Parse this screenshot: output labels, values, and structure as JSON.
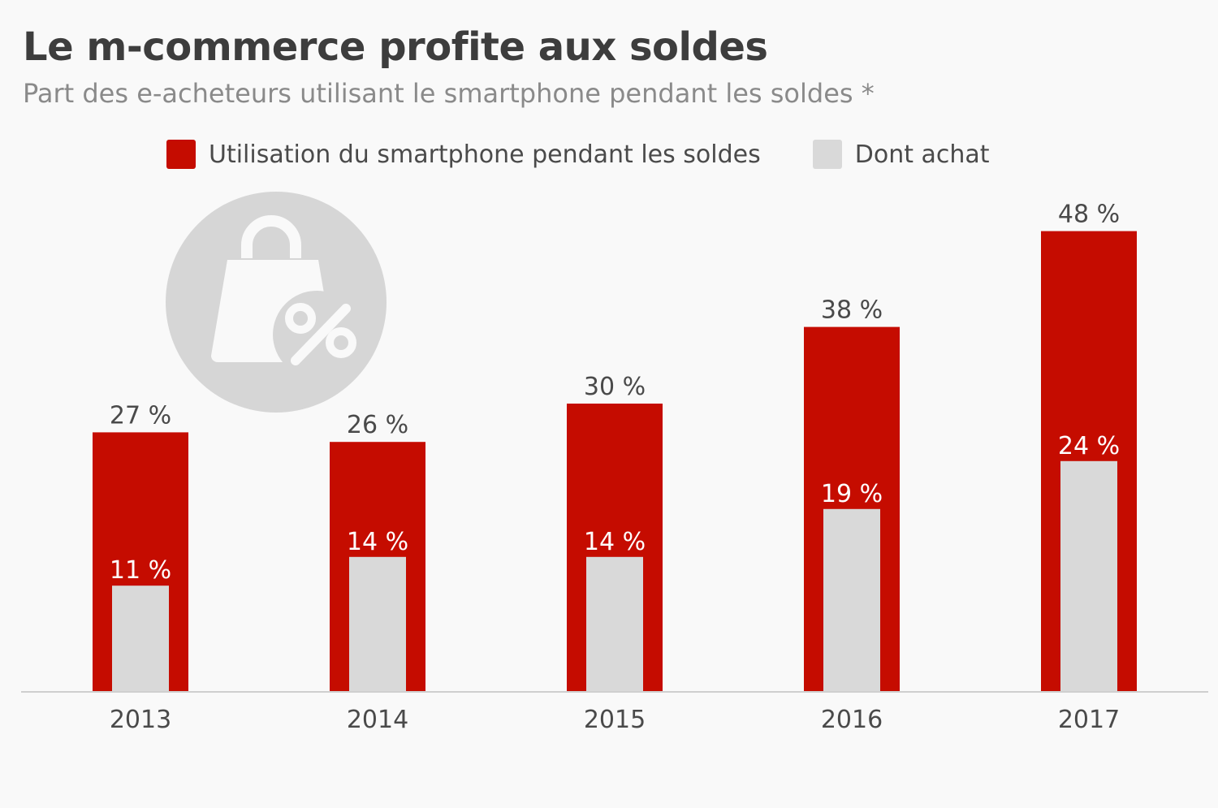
{
  "title": "Le m-commerce profite aux soldes",
  "subtitle": "Part des e-acheteurs utilisant le smartphone pendant les soldes *",
  "decoration_icon": "shopping-bag-percent-icon",
  "colors": {
    "primary": "#c50c00",
    "secondary": "#d9d9d9",
    "background": "#f9f9f9"
  },
  "chart_data": {
    "type": "bar",
    "categories": [
      "2013",
      "2014",
      "2015",
      "2016",
      "2017"
    ],
    "series": [
      {
        "name": "Utilisation du smartphone pendant les soldes",
        "values": [
          27,
          26,
          30,
          38,
          48
        ],
        "labels": [
          "27 %",
          "26 %",
          "30 %",
          "38 %",
          "48 %"
        ],
        "color": "#c50c00"
      },
      {
        "name": "Dont achat",
        "values": [
          11,
          14,
          14,
          19,
          24
        ],
        "labels": [
          "11 %",
          "14 %",
          "14 %",
          "19 %",
          "24 %"
        ],
        "color": "#d9d9d9"
      }
    ],
    "ylim": [
      0,
      55
    ],
    "grid": false,
    "legend": "top"
  }
}
